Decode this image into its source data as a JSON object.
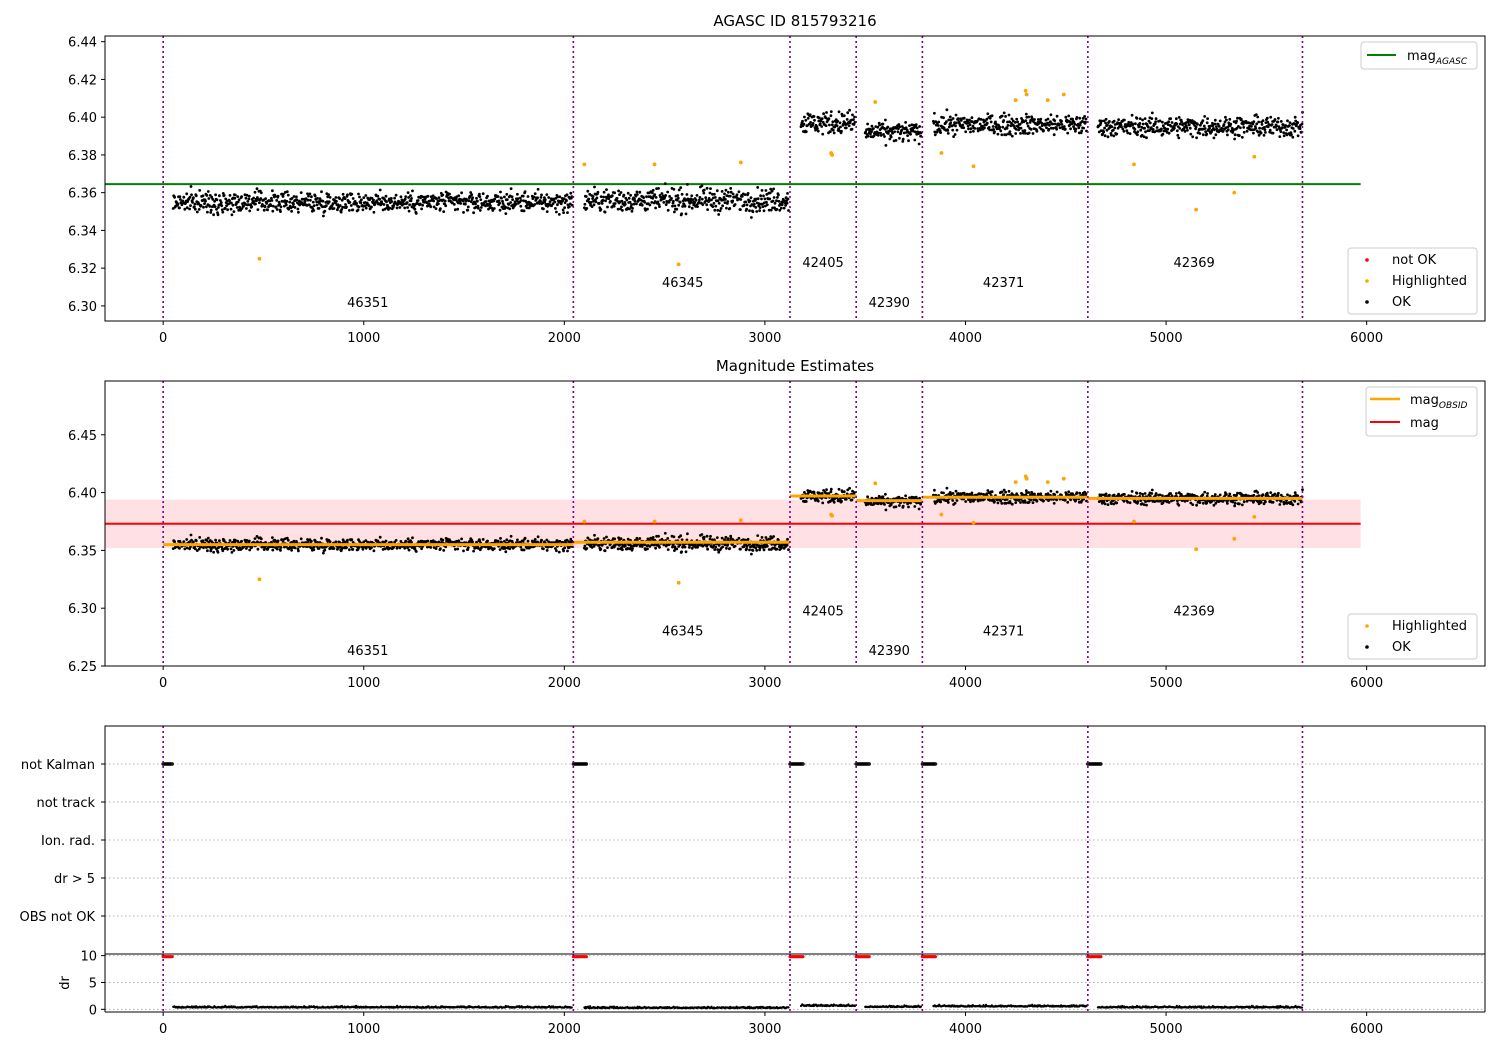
{
  "colors": {
    "ok": "#000000",
    "highlighted": "#ffa500",
    "not_ok": "#ff0000",
    "agasc_line": "#008000",
    "mag_line": "#ff0000",
    "mag_band": "#ffe0e4",
    "obsid_line": "#ffa500",
    "obs_boundary": "#800080",
    "grid": "#b0b0b0"
  },
  "chart_data": [
    {
      "type": "scatter",
      "title": "AGASC ID 815793216",
      "xlabel": "",
      "ylabel": "",
      "xlim": [
        -290,
        6590
      ],
      "ylim": [
        6.292,
        6.443
      ],
      "xticks": [
        0,
        1000,
        2000,
        3000,
        4000,
        5000,
        6000
      ],
      "yticks": [
        6.3,
        6.32,
        6.34,
        6.36,
        6.38,
        6.4,
        6.42,
        6.44
      ],
      "ytick_labels": [
        "6.30",
        "6.32",
        "6.34",
        "6.36",
        "6.38",
        "6.40",
        "6.42",
        "6.44"
      ],
      "obs_boundaries": [
        0,
        2045,
        3125,
        3455,
        3785,
        4610,
        5680
      ],
      "obs_labels": [
        {
          "text": "46351",
          "x": 1020,
          "y": 6.2995
        },
        {
          "text": "46345",
          "x": 2590,
          "y": 6.31
        },
        {
          "text": "42405",
          "x": 3290,
          "y": 6.3205
        },
        {
          "text": "42390",
          "x": 3620,
          "y": 6.2995
        },
        {
          "text": "42371",
          "x": 4190,
          "y": 6.31
        },
        {
          "text": "42369",
          "x": 5140,
          "y": 6.3205
        }
      ],
      "mag_agasc": {
        "value": 6.3645,
        "x_range": [
          -290,
          5970
        ]
      },
      "ok_segments": [
        {
          "x": [
            50,
            2040
          ],
          "mean": 6.355,
          "spread": 0.007
        },
        {
          "x": [
            2100,
            3120
          ],
          "mean": 6.356,
          "spread": 0.008
        },
        {
          "x": [
            3180,
            3450
          ],
          "mean": 6.397,
          "spread": 0.008
        },
        {
          "x": [
            3500,
            3780
          ],
          "mean": 6.392,
          "spread": 0.007
        },
        {
          "x": [
            3840,
            4605
          ],
          "mean": 6.396,
          "spread": 0.007
        },
        {
          "x": [
            4660,
            5680
          ],
          "mean": 6.395,
          "spread": 0.007
        }
      ],
      "highlighted_points": [
        {
          "x": 480,
          "y": 6.325
        },
        {
          "x": 2100,
          "y": 6.375
        },
        {
          "x": 2450,
          "y": 6.375
        },
        {
          "x": 2570,
          "y": 6.322
        },
        {
          "x": 2880,
          "y": 6.376
        },
        {
          "x": 3330,
          "y": 6.381
        },
        {
          "x": 3335,
          "y": 6.38
        },
        {
          "x": 3550,
          "y": 6.408
        },
        {
          "x": 3880,
          "y": 6.381
        },
        {
          "x": 4040,
          "y": 6.374
        },
        {
          "x": 4250,
          "y": 6.409
        },
        {
          "x": 4300,
          "y": 6.414
        },
        {
          "x": 4305,
          "y": 6.412
        },
        {
          "x": 4410,
          "y": 6.409
        },
        {
          "x": 4490,
          "y": 6.412
        },
        {
          "x": 4840,
          "y": 6.375
        },
        {
          "x": 5150,
          "y": 6.351
        },
        {
          "x": 5340,
          "y": 6.36
        },
        {
          "x": 5440,
          "y": 6.379
        }
      ],
      "legend_upper": [
        {
          "label": "mag",
          "sub": "AGASC",
          "kind": "line"
        }
      ],
      "legend_lower": [
        {
          "label": "not OK",
          "kind": "dot-red"
        },
        {
          "label": "Highlighted",
          "kind": "dot-orange"
        },
        {
          "label": "OK",
          "kind": "dot-black"
        }
      ]
    },
    {
      "type": "scatter",
      "title": "Magnitude Estimates",
      "xlabel": "",
      "ylabel": "",
      "xlim": [
        -290,
        6590
      ],
      "ylim": [
        6.25,
        6.4965
      ],
      "xticks": [
        0,
        1000,
        2000,
        3000,
        4000,
        5000,
        6000
      ],
      "yticks": [
        6.25,
        6.3,
        6.35,
        6.4,
        6.45
      ],
      "ytick_labels": [
        "6.25",
        "6.30",
        "6.35",
        "6.40",
        "6.45"
      ],
      "obs_boundaries": [
        0,
        2045,
        3125,
        3455,
        3785,
        4610,
        5680
      ],
      "obs_labels": [
        {
          "text": "46351",
          "x": 1020,
          "y": 6.2595
        },
        {
          "text": "46345",
          "x": 2590,
          "y": 6.2765
        },
        {
          "text": "42405",
          "x": 3290,
          "y": 6.2935
        },
        {
          "text": "42390",
          "x": 3620,
          "y": 6.2595
        },
        {
          "text": "42371",
          "x": 4190,
          "y": 6.2765
        },
        {
          "text": "42369",
          "x": 5140,
          "y": 6.2935
        }
      ],
      "mag": {
        "value": 6.373,
        "band": [
          6.352,
          6.394
        ],
        "x_range": [
          -290,
          5970
        ]
      },
      "mag_obsid": [
        {
          "x": [
            0,
            2045
          ],
          "value": 6.355
        },
        {
          "x": [
            2045,
            3125
          ],
          "value": 6.357
        },
        {
          "x": [
            3125,
            3455
          ],
          "value": 6.397
        },
        {
          "x": [
            3455,
            3785
          ],
          "value": 6.393
        },
        {
          "x": [
            3785,
            4610
          ],
          "value": 6.396
        },
        {
          "x": [
            4610,
            5680
          ],
          "value": 6.395
        }
      ],
      "legend_upper": [
        {
          "label": "mag",
          "sub": "OBSID",
          "kind": "line-orange"
        },
        {
          "label": "mag",
          "sub": "",
          "kind": "line-red"
        }
      ],
      "legend_lower": [
        {
          "label": "Highlighted",
          "kind": "dot-orange"
        },
        {
          "label": "OK",
          "kind": "dot-black"
        }
      ]
    },
    {
      "type": "scatter",
      "title": "",
      "xlabel": "",
      "ylabel": "",
      "xlim": [
        -290,
        6590
      ],
      "obs_boundaries": [
        0,
        2045,
        3125,
        3455,
        3785,
        4610,
        5680
      ],
      "flag_rows": [
        "not Kalman",
        "not track",
        "Ion. rad.",
        "dr > 5",
        "OBS not OK"
      ],
      "not_kalman_ranges": [
        [
          0,
          45
        ],
        [
          2045,
          2110
        ],
        [
          3125,
          3190
        ],
        [
          3455,
          3520
        ],
        [
          3785,
          3850
        ],
        [
          4610,
          4675
        ]
      ]
    },
    {
      "type": "scatter",
      "title": "",
      "xlabel": "",
      "ylabel": "dr",
      "xlim": [
        -290,
        6590
      ],
      "ylim": [
        -0.5,
        10.3
      ],
      "yticks": [
        0,
        5,
        10
      ],
      "ytick_labels": [
        "0",
        "5",
        "10"
      ],
      "xticks": [
        0,
        1000,
        2000,
        3000,
        4000,
        5000,
        6000
      ],
      "obs_boundaries": [
        0,
        2045,
        3125,
        3455,
        3785,
        4610,
        5680
      ],
      "dr_clipped_ranges": [
        [
          0,
          45
        ],
        [
          2045,
          2110
        ],
        [
          3125,
          3190
        ],
        [
          3455,
          3520
        ],
        [
          3785,
          3850
        ],
        [
          4610,
          4675
        ]
      ],
      "dr_segments": [
        {
          "x": [
            50,
            2040
          ],
          "level": 0.3
        },
        {
          "x": [
            2100,
            3120
          ],
          "level": 0.2
        },
        {
          "x": [
            3180,
            3450
          ],
          "level": 0.6
        },
        {
          "x": [
            3500,
            3780
          ],
          "level": 0.4
        },
        {
          "x": [
            3840,
            4605
          ],
          "level": 0.5
        },
        {
          "x": [
            4660,
            5680
          ],
          "level": 0.3
        }
      ]
    }
  ]
}
